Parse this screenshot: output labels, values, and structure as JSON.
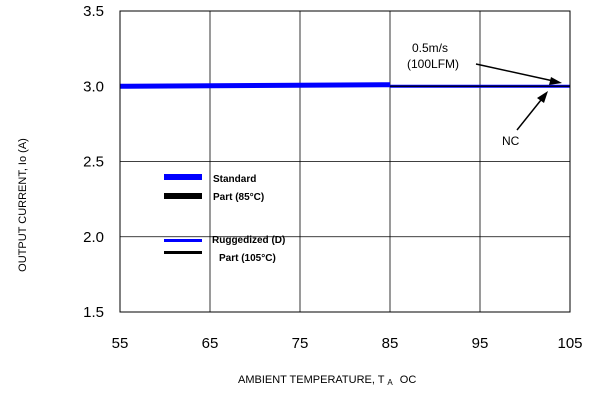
{
  "chart_data": {
    "type": "line",
    "x_ticks": [
      "55",
      "65",
      "75",
      "85",
      "95",
      "105"
    ],
    "y_ticks": [
      "1.5",
      "2.0",
      "2.5",
      "3.0",
      "3.5"
    ],
    "xlim": [
      55,
      105
    ],
    "ylim": [
      1.5,
      3.5
    ],
    "grid": true,
    "xlabel": {
      "main": "AMBIENT TEMPERATURE, T",
      "subscript": "A",
      "unit": "OC"
    },
    "ylabel": "OUTPUT CURRENT, Io  (A)",
    "series": [
      {
        "name": "Standard",
        "name_line2": "Part (85°C)",
        "color": "#0000ff",
        "x": [
          55,
          85
        ],
        "y": [
          3.0,
          3.01
        ]
      },
      {
        "name": "Ruggedized (D)",
        "name_line2": "Part (105°C)",
        "color": "#0000ff",
        "x": [
          85,
          105
        ],
        "y": [
          3.0,
          3.0
        ]
      },
      {
        "color": "#000000",
        "x": [
          85,
          105
        ],
        "y": [
          3.0,
          3.0
        ]
      }
    ],
    "legend": [
      {
        "line1": "Standard",
        "line2": "Part (85°C)",
        "swatch_top": "#0000ff",
        "swatch_bottom": "#000000"
      },
      {
        "line1": "Ruggedized (D)",
        "line2": "Part (105°C)",
        "swatch_top": "#0000ff",
        "swatch_bottom": "#000000"
      }
    ],
    "annotations": [
      {
        "line1": "0.5m/s",
        "line2": "(100LFM)",
        "target": [
          104.6,
          3.01
        ]
      },
      {
        "line1": "NC",
        "target": [
          103.6,
          2.97
        ]
      }
    ]
  }
}
